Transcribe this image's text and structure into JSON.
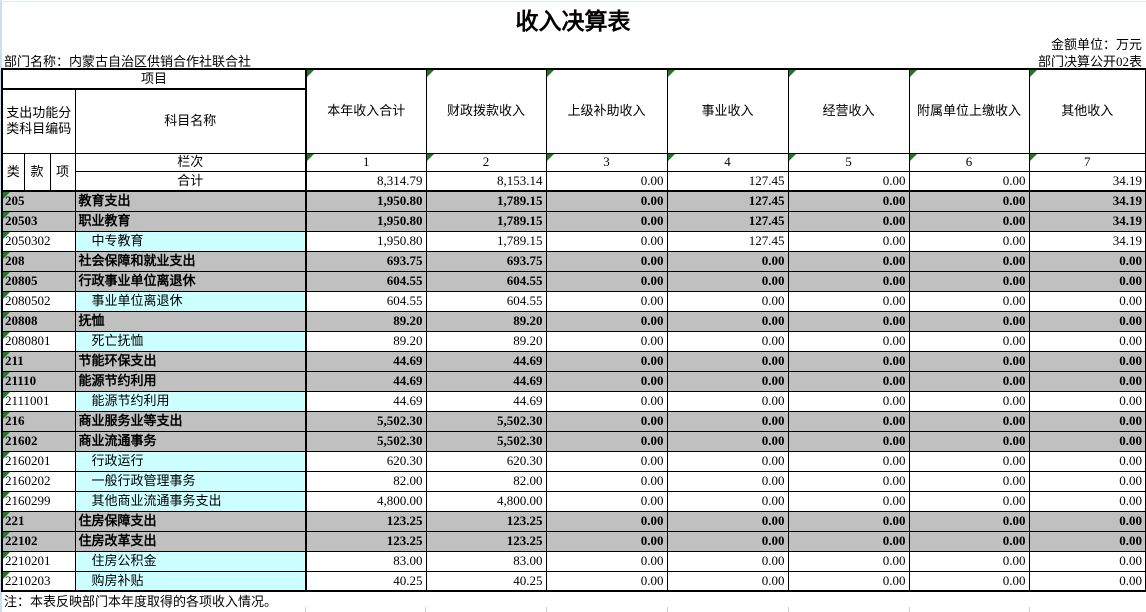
{
  "page": {
    "title": "收入决算表",
    "unit_label": "金额单位：万元",
    "department_label": "部门名称：内蒙古自治区供销合作社联合社",
    "sheet_label": "部门决算公开02表",
    "note": "注：本表反映部门本年度取得的各项收入情况。"
  },
  "table": {
    "header": {
      "project": "项目",
      "code_label": "支出功能分类科目编码",
      "subject_label": "科目名称",
      "sub_cols": [
        "类",
        "款",
        "项"
      ],
      "column_row_label": "栏次",
      "column_numbers": [
        "1",
        "2",
        "3",
        "4",
        "5",
        "6",
        "7"
      ],
      "value_columns": [
        "本年收入合计",
        "财政拨款收入",
        "上级补助收入",
        "事业收入",
        "经营收入",
        "附属单位上缴收入",
        "其他收入"
      ],
      "total_label": "合计"
    },
    "total_row": [
      "8,314.79",
      "8,153.14",
      "0.00",
      "127.45",
      "0.00",
      "0.00",
      "34.19"
    ],
    "rows": [
      {
        "code": "205",
        "name": "教育支出",
        "style": "category",
        "values": [
          "1,950.80",
          "1,789.15",
          "0.00",
          "127.45",
          "0.00",
          "0.00",
          "34.19"
        ]
      },
      {
        "code": "20503",
        "name": "职业教育",
        "style": "category",
        "values": [
          "1,950.80",
          "1,789.15",
          "0.00",
          "127.45",
          "0.00",
          "0.00",
          "34.19"
        ]
      },
      {
        "code": "2050302",
        "name": "中专教育",
        "style": "detail",
        "values": [
          "1,950.80",
          "1,789.15",
          "0.00",
          "127.45",
          "0.00",
          "0.00",
          "34.19"
        ]
      },
      {
        "code": "208",
        "name": "社会保障和就业支出",
        "style": "category",
        "values": [
          "693.75",
          "693.75",
          "0.00",
          "0.00",
          "0.00",
          "0.00",
          "0.00"
        ]
      },
      {
        "code": "20805",
        "name": "行政事业单位离退休",
        "style": "category",
        "values": [
          "604.55",
          "604.55",
          "0.00",
          "0.00",
          "0.00",
          "0.00",
          "0.00"
        ]
      },
      {
        "code": "2080502",
        "name": "事业单位离退休",
        "style": "detail",
        "values": [
          "604.55",
          "604.55",
          "0.00",
          "0.00",
          "0.00",
          "0.00",
          "0.00"
        ]
      },
      {
        "code": "20808",
        "name": "抚恤",
        "style": "category",
        "values": [
          "89.20",
          "89.20",
          "0.00",
          "0.00",
          "0.00",
          "0.00",
          "0.00"
        ]
      },
      {
        "code": "2080801",
        "name": "死亡抚恤",
        "style": "detail",
        "values": [
          "89.20",
          "89.20",
          "0.00",
          "0.00",
          "0.00",
          "0.00",
          "0.00"
        ]
      },
      {
        "code": "211",
        "name": "节能环保支出",
        "style": "category",
        "values": [
          "44.69",
          "44.69",
          "0.00",
          "0.00",
          "0.00",
          "0.00",
          "0.00"
        ]
      },
      {
        "code": "21110",
        "name": "能源节约利用",
        "style": "category",
        "values": [
          "44.69",
          "44.69",
          "0.00",
          "0.00",
          "0.00",
          "0.00",
          "0.00"
        ]
      },
      {
        "code": "2111001",
        "name": "能源节约利用",
        "style": "detail",
        "values": [
          "44.69",
          "44.69",
          "0.00",
          "0.00",
          "0.00",
          "0.00",
          "0.00"
        ]
      },
      {
        "code": "216",
        "name": "商业服务业等支出",
        "style": "category",
        "values": [
          "5,502.30",
          "5,502.30",
          "0.00",
          "0.00",
          "0.00",
          "0.00",
          "0.00"
        ]
      },
      {
        "code": "21602",
        "name": "商业流通事务",
        "style": "category",
        "values": [
          "5,502.30",
          "5,502.30",
          "0.00",
          "0.00",
          "0.00",
          "0.00",
          "0.00"
        ]
      },
      {
        "code": "2160201",
        "name": "行政运行",
        "style": "detail",
        "values": [
          "620.30",
          "620.30",
          "0.00",
          "0.00",
          "0.00",
          "0.00",
          "0.00"
        ]
      },
      {
        "code": "2160202",
        "name": "一般行政管理事务",
        "style": "detail",
        "values": [
          "82.00",
          "82.00",
          "0.00",
          "0.00",
          "0.00",
          "0.00",
          "0.00"
        ]
      },
      {
        "code": "2160299",
        "name": "其他商业流通事务支出",
        "style": "detail",
        "values": [
          "4,800.00",
          "4,800.00",
          "0.00",
          "0.00",
          "0.00",
          "0.00",
          "0.00"
        ]
      },
      {
        "code": "221",
        "name": "住房保障支出",
        "style": "category",
        "values": [
          "123.25",
          "123.25",
          "0.00",
          "0.00",
          "0.00",
          "0.00",
          "0.00"
        ]
      },
      {
        "code": "22102",
        "name": "住房改革支出",
        "style": "category",
        "values": [
          "123.25",
          "123.25",
          "0.00",
          "0.00",
          "0.00",
          "0.00",
          "0.00"
        ]
      },
      {
        "code": "2210201",
        "name": "住房公积金",
        "style": "detail",
        "values": [
          "83.00",
          "83.00",
          "0.00",
          "0.00",
          "0.00",
          "0.00",
          "0.00"
        ]
      },
      {
        "code": "2210203",
        "name": "购房补贴",
        "style": "detail",
        "values": [
          "40.25",
          "40.25",
          "0.00",
          "0.00",
          "0.00",
          "0.00",
          "0.00"
        ]
      }
    ]
  },
  "colors": {
    "category_row_bg": "#c0c0c0",
    "detail_name_bg": "#ccffff",
    "indicator_triangle": "#1e7a1e",
    "border": "#000000",
    "edge_blue": "#c9dff0"
  }
}
